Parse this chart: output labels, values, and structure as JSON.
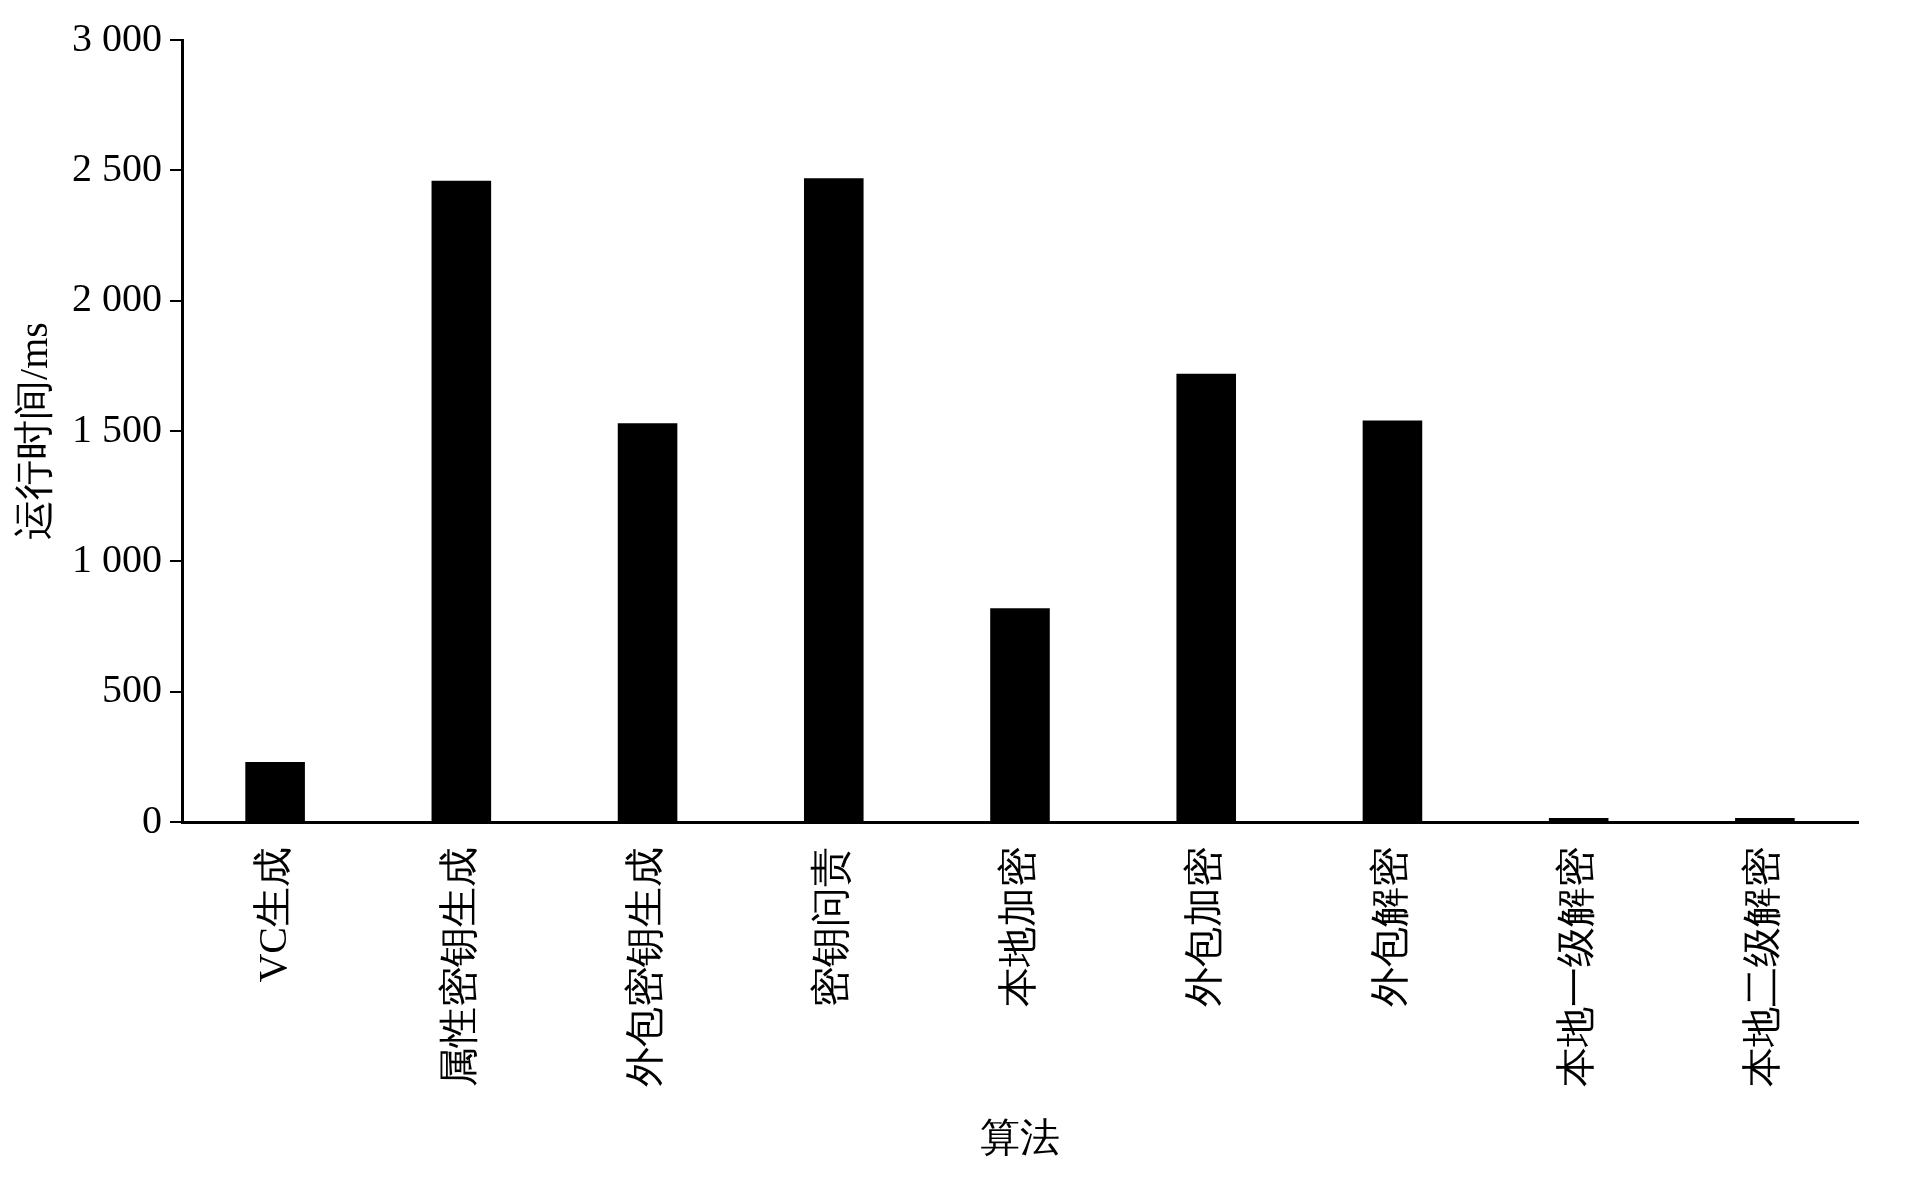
{
  "chart_data": {
    "type": "bar",
    "xlabel": "算法",
    "ylabel": "运行时间/ms",
    "categories": [
      "VC生成",
      "属性密钥生成",
      "外包密钥生成",
      "密钥问责",
      "本地加密",
      "外包加密",
      "外包解密",
      "本地一级解密",
      "本地二级解密"
    ],
    "values": [
      230,
      2460,
      1530,
      2470,
      820,
      1720,
      1540,
      15,
      15
    ],
    "color": "#000000",
    "ylim": [
      0,
      3000
    ],
    "yticks": [
      0,
      500,
      {
        "value": 1000,
        "label": "1 000"
      },
      {
        "value": 1500,
        "label": "1 500"
      },
      {
        "value": 2000,
        "label": "2 000"
      },
      {
        "value": 2500,
        "label": "2 500"
      },
      {
        "value": 3000,
        "label": "3 000"
      }
    ],
    "grid": false,
    "legend": false
  }
}
